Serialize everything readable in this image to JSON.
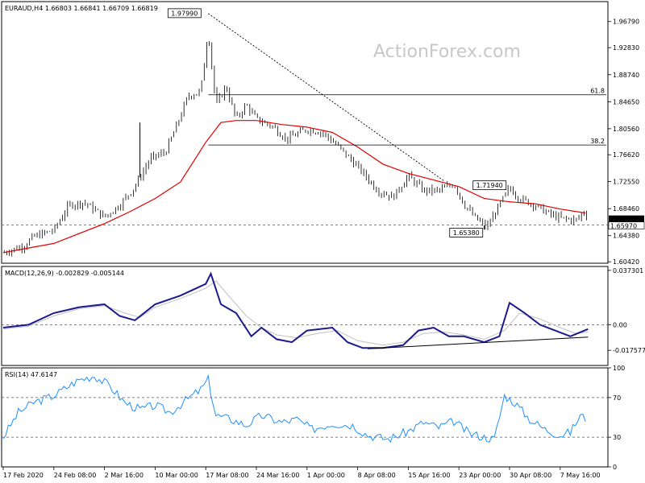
{
  "colors": {
    "candle": "#000000",
    "ma": "#e00000",
    "macd_line": "#1a1a8c",
    "signal_line": "#c0c0c0",
    "rsi_line": "#1e90ff",
    "grid_dash": "#555555",
    "frame": "#000000"
  },
  "watermark": "ActionForex.com",
  "chart_data": [
    {
      "type": "candlestick",
      "title": "EURAUD,H4 1.66803 1.66841 1.66709 1.66819",
      "ylim": [
        1.602,
        1.998
      ],
      "y_ticks": [
        "1.96790",
        "1.92830",
        "1.88740",
        "1.84650",
        "1.80560",
        "1.76620",
        "1.72550",
        "1.68460",
        "1.64380",
        "1.60420"
      ],
      "y_tick_values": [
        1.9679,
        1.9283,
        1.8874,
        1.8465,
        1.8056,
        1.7662,
        1.7255,
        1.6846,
        1.6438,
        1.6042
      ],
      "x_ticks": [
        "17 Feb 2020",
        "24 Feb 08:00",
        "2 Mar 16:00",
        "10 Mar 00:00",
        "17 Mar 08:00",
        "24 Mar 16:00",
        "1 Apr 00:00",
        "8 Apr 08:00",
        "15 Apr 16:00",
        "23 Apr 00:00",
        "30 Apr 08:00",
        "7 May 16:00"
      ],
      "x_tick_index": [
        0,
        1,
        2,
        3,
        4,
        5,
        6,
        7,
        8,
        9,
        10,
        11
      ],
      "price_path": [
        [
          0,
          1.618
        ],
        [
          0.4,
          1.628
        ],
        [
          0.6,
          1.642
        ],
        [
          1.0,
          1.652
        ],
        [
          1.3,
          1.69
        ],
        [
          1.6,
          1.694
        ],
        [
          2.0,
          1.672
        ],
        [
          2.3,
          1.69
        ],
        [
          2.6,
          1.718
        ],
        [
          2.9,
          1.76
        ],
        [
          3.2,
          1.77
        ],
        [
          3.4,
          1.805
        ],
        [
          3.65,
          1.855
        ],
        [
          3.9,
          1.862
        ],
        [
          4.05,
          1.955
        ],
        [
          4.2,
          1.84
        ],
        [
          4.4,
          1.87
        ],
        [
          4.6,
          1.82
        ],
        [
          4.8,
          1.842
        ],
        [
          5.0,
          1.82
        ],
        [
          5.3,
          1.81
        ],
        [
          5.6,
          1.79
        ],
        [
          6.0,
          1.805
        ],
        [
          6.3,
          1.8
        ],
        [
          6.6,
          1.78
        ],
        [
          7.0,
          1.748
        ],
        [
          7.4,
          1.712
        ],
        [
          7.7,
          1.702
        ],
        [
          8.0,
          1.734
        ],
        [
          8.3,
          1.712
        ],
        [
          8.6,
          1.712
        ],
        [
          8.9,
          1.722
        ],
        [
          9.1,
          1.692
        ],
        [
          9.3,
          1.672
        ],
        [
          9.55,
          1.656
        ],
        [
          9.8,
          1.69
        ],
        [
          10.0,
          1.716
        ],
        [
          10.2,
          1.7
        ],
        [
          10.5,
          1.69
        ],
        [
          10.8,
          1.676
        ],
        [
          11.0,
          1.67
        ],
        [
          11.2,
          1.668
        ],
        [
          11.35,
          1.668
        ],
        [
          11.45,
          1.68
        ],
        [
          11.55,
          1.675
        ]
      ],
      "spikes": [
        [
          2.7,
          1.815
        ],
        [
          9.5,
          1.653
        ]
      ],
      "series": [
        {
          "name": "",
          "points": [
            [
              0,
              1.618
            ],
            [
              1.0,
              1.632
            ],
            [
              2.0,
              1.662
            ],
            [
              2.5,
              1.68
            ],
            [
              3.0,
              1.7
            ],
            [
              3.5,
              1.725
            ],
            [
              4.0,
              1.785
            ],
            [
              4.3,
              1.815
            ],
            [
              4.6,
              1.818
            ],
            [
              5.0,
              1.818
            ],
            [
              5.5,
              1.812
            ],
            [
              6.0,
              1.808
            ],
            [
              6.5,
              1.8
            ],
            [
              7.0,
              1.778
            ],
            [
              7.5,
              1.752
            ],
            [
              8.0,
              1.738
            ],
            [
              8.5,
              1.728
            ],
            [
              9.0,
              1.718
            ],
            [
              9.5,
              1.7
            ],
            [
              10.0,
              1.695
            ],
            [
              10.5,
              1.692
            ],
            [
              11.0,
              1.684
            ],
            [
              11.5,
              1.678
            ]
          ]
        }
      ],
      "annotations": [
        {
          "label": "1.97990",
          "x": 4.05,
          "y": 1.9799
        },
        {
          "label": "1.71940",
          "x": 9.9,
          "y": 1.7194
        },
        {
          "label": "1.65380",
          "x": 9.55,
          "y": 1.6538
        }
      ],
      "trendline": [
        [
          4.05,
          1.9799
        ],
        [
          8.7,
          1.727
        ]
      ],
      "fib_levels": [
        {
          "label": "61.8",
          "value": 1.857,
          "x_start": 4.05
        },
        {
          "label": "38.2",
          "value": 1.781,
          "x_start": 4.05
        }
      ],
      "horizontal_dashed": 1.6597,
      "current_labels": [
        "1.66819",
        "1.65970"
      ]
    },
    {
      "type": "line",
      "title": "MACD(12,26,9) -0.002829 -0.005144",
      "ylim": [
        -0.028,
        0.04
      ],
      "y_ticks": [
        "0.037301",
        "0.00",
        "-0.017577"
      ],
      "y_tick_values": [
        0.037301,
        0.0,
        -0.017577
      ],
      "series": [
        {
          "name": "",
          "role": "macd",
          "points": [
            [
              0,
              -0.002
            ],
            [
              0.5,
              0.0
            ],
            [
              1.0,
              0.008
            ],
            [
              1.5,
              0.012
            ],
            [
              2.0,
              0.014
            ],
            [
              2.3,
              0.006
            ],
            [
              2.6,
              0.003
            ],
            [
              3.0,
              0.014
            ],
            [
              3.5,
              0.02
            ],
            [
              4.0,
              0.028
            ],
            [
              4.1,
              0.035
            ],
            [
              4.3,
              0.014
            ],
            [
              4.6,
              0.008
            ],
            [
              4.9,
              -0.008
            ],
            [
              5.1,
              -0.002
            ],
            [
              5.4,
              -0.01
            ],
            [
              5.7,
              -0.012
            ],
            [
              6.0,
              -0.004
            ],
            [
              6.5,
              -0.002
            ],
            [
              6.8,
              -0.012
            ],
            [
              7.1,
              -0.016
            ],
            [
              7.5,
              -0.016
            ],
            [
              7.9,
              -0.014
            ],
            [
              8.2,
              -0.004
            ],
            [
              8.5,
              -0.002
            ],
            [
              8.8,
              -0.008
            ],
            [
              9.1,
              -0.008
            ],
            [
              9.5,
              -0.012
            ],
            [
              9.8,
              -0.008
            ],
            [
              10.0,
              0.015
            ],
            [
              10.3,
              0.008
            ],
            [
              10.6,
              0.0
            ],
            [
              10.9,
              -0.004
            ],
            [
              11.2,
              -0.008
            ],
            [
              11.55,
              -0.003
            ]
          ]
        },
        {
          "name": "",
          "role": "signal",
          "points": [
            [
              0,
              -0.003
            ],
            [
              0.5,
              -0.001
            ],
            [
              1.0,
              0.006
            ],
            [
              1.5,
              0.011
            ],
            [
              2.0,
              0.013
            ],
            [
              2.4,
              0.008
            ],
            [
              2.7,
              0.005
            ],
            [
              3.0,
              0.012
            ],
            [
              3.5,
              0.018
            ],
            [
              4.0,
              0.025
            ],
            [
              4.2,
              0.03
            ],
            [
              4.5,
              0.018
            ],
            [
              4.8,
              0.006
            ],
            [
              5.1,
              -0.002
            ],
            [
              5.4,
              -0.007
            ],
            [
              5.8,
              -0.009
            ],
            [
              6.2,
              -0.006
            ],
            [
              6.6,
              -0.004
            ],
            [
              7.0,
              -0.011
            ],
            [
              7.5,
              -0.014
            ],
            [
              7.9,
              -0.012
            ],
            [
              8.3,
              -0.006
            ],
            [
              8.7,
              -0.005
            ],
            [
              9.1,
              -0.007
            ],
            [
              9.5,
              -0.01
            ],
            [
              9.9,
              -0.004
            ],
            [
              10.2,
              0.008
            ],
            [
              10.6,
              0.004
            ],
            [
              11.0,
              -0.002
            ],
            [
              11.3,
              -0.006
            ],
            [
              11.55,
              -0.005
            ]
          ]
        }
      ],
      "trendline": [
        [
          7.2,
          -0.0165
        ],
        [
          11.55,
          -0.0085
        ]
      ]
    },
    {
      "type": "line",
      "title": "RSI(14) 47.6147",
      "ylim": [
        0,
        100
      ],
      "y_ticks": [
        "100",
        "70",
        "30",
        "0"
      ],
      "y_tick_values": [
        100,
        70,
        30,
        0
      ],
      "levels": [
        70,
        30
      ],
      "series": [
        {
          "name": "",
          "points": [
            [
              0,
              30
            ],
            [
              0.3,
              55
            ],
            [
              0.6,
              65
            ],
            [
              1.0,
              72
            ],
            [
              1.3,
              82
            ],
            [
              1.5,
              88
            ],
            [
              1.8,
              92
            ],
            [
              2.1,
              82
            ],
            [
              2.4,
              65
            ],
            [
              2.7,
              58
            ],
            [
              3.0,
              62
            ],
            [
              3.3,
              55
            ],
            [
              3.6,
              67
            ],
            [
              3.9,
              78
            ],
            [
              4.05,
              88
            ],
            [
              4.2,
              52
            ],
            [
              4.5,
              48
            ],
            [
              4.8,
              42
            ],
            [
              5.1,
              52
            ],
            [
              5.5,
              45
            ],
            [
              5.8,
              48
            ],
            [
              6.1,
              38
            ],
            [
              6.5,
              44
            ],
            [
              6.9,
              42
            ],
            [
              7.2,
              32
            ],
            [
              7.6,
              28
            ],
            [
              8.0,
              36
            ],
            [
              8.3,
              45
            ],
            [
              8.6,
              40
            ],
            [
              8.9,
              46
            ],
            [
              9.2,
              34
            ],
            [
              9.5,
              30
            ],
            [
              9.7,
              28
            ],
            [
              9.9,
              72
            ],
            [
              10.1,
              65
            ],
            [
              10.4,
              48
            ],
            [
              10.7,
              38
            ],
            [
              11.0,
              32
            ],
            [
              11.2,
              35
            ],
            [
              11.4,
              52
            ],
            [
              11.55,
              47
            ]
          ]
        }
      ]
    }
  ]
}
